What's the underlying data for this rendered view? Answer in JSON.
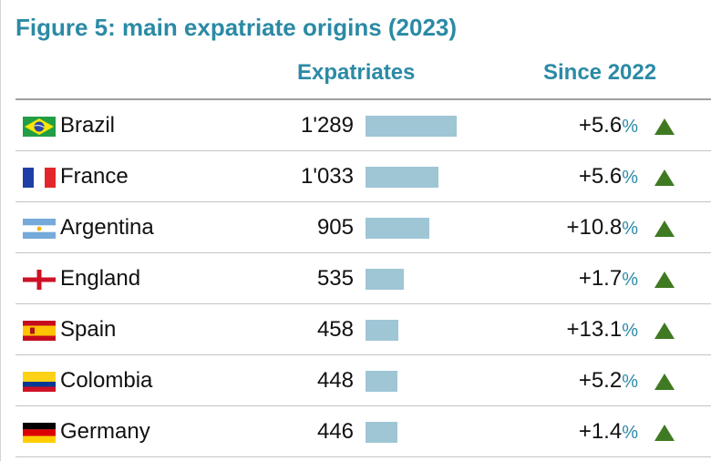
{
  "title": "Figure 5: main expatriate origins (2023)",
  "headers": {
    "expatriates": "Expatriates",
    "since": "Since 2022"
  },
  "colors": {
    "accent": "#2b8aa5",
    "bar": "#9ec6d5",
    "up_arrow": "#3f7a22"
  },
  "chart_data": {
    "type": "table",
    "title": "Figure 5: main expatriate origins (2023)",
    "columns": [
      "",
      "Expatriates",
      "Since 2022"
    ],
    "rows": [
      {
        "country": "Brazil",
        "flag": "brazil-flag-icon",
        "value": 1289,
        "value_label": "1'289",
        "change": "+5.6",
        "unit": "%",
        "trend": "up"
      },
      {
        "country": "France",
        "flag": "france-flag-icon",
        "value": 1033,
        "value_label": "1'033",
        "change": "+5.6",
        "unit": "%",
        "trend": "up"
      },
      {
        "country": "Argentina",
        "flag": "argentina-flag-icon",
        "value": 905,
        "value_label": "905",
        "change": "+10.8",
        "unit": "%",
        "trend": "up"
      },
      {
        "country": "England",
        "flag": "england-flag-icon",
        "value": 535,
        "value_label": "535",
        "change": "+1.7",
        "unit": "%",
        "trend": "up"
      },
      {
        "country": "Spain",
        "flag": "spain-flag-icon",
        "value": 458,
        "value_label": "458",
        "change": "+13.1",
        "unit": "%",
        "trend": "up"
      },
      {
        "country": "Colombia",
        "flag": "colombia-flag-icon",
        "value": 448,
        "value_label": "448",
        "change": "+5.2",
        "unit": "%",
        "trend": "up"
      },
      {
        "country": "Germany",
        "flag": "germany-flag-icon",
        "value": 446,
        "value_label": "446",
        "change": "+1.4",
        "unit": "%",
        "trend": "up"
      }
    ]
  }
}
